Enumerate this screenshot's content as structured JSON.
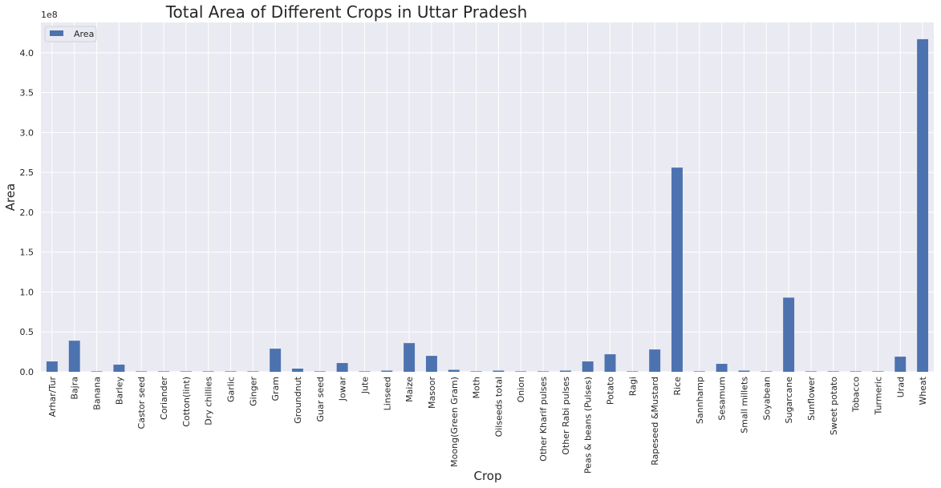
{
  "chart_data": {
    "type": "bar",
    "title": "Total Area of Different Crops in Uttar Pradesh",
    "xlabel": "Crop",
    "ylabel": "Area",
    "y_offset_label": "1e8",
    "ylim": [
      0,
      4.38
    ],
    "y_ticks": [
      "0.0",
      "0.5",
      "1.0",
      "1.5",
      "2.0",
      "2.5",
      "3.0",
      "3.5",
      "4.0"
    ],
    "grid": true,
    "legend_position": "top-left",
    "series": [
      {
        "name": "Area",
        "color": "#4c72b0",
        "values": [
          0.13,
          0.39,
          0.005,
          0.09,
          0.002,
          0.002,
          0.002,
          0.003,
          0.002,
          0.002,
          0.29,
          0.04,
          0.002,
          0.11,
          0.002,
          0.015,
          0.36,
          0.2,
          0.025,
          0.002,
          0.015,
          0.004,
          0.004,
          0.015,
          0.13,
          0.22,
          0.002,
          0.28,
          2.56,
          0.002,
          0.1,
          0.015,
          0.005,
          0.93,
          0.002,
          0.002,
          0.005,
          0.002,
          0.19,
          4.17
        ]
      }
    ],
    "categories": [
      "Arhar/Tur",
      "Bajra",
      "Banana",
      "Barley",
      "Castor seed",
      "Coriander",
      "Cotton(lint)",
      "Dry chillies",
      "Garlic",
      "Ginger",
      "Gram",
      "Groundnut",
      "Guar seed",
      "Jowar",
      "Jute",
      "Linseed",
      "Maize",
      "Masoor",
      "Moong(Green Gram)",
      "Moth",
      "Oilseeds total",
      "Onion",
      "Other Kharif pulses",
      "Other Rabi pulses",
      "Peas & beans (Pulses)",
      "Potato",
      "Ragi",
      "Rapeseed &Mustard",
      "Rice",
      "Sannhamp",
      "Sesamum",
      "Small millets",
      "Soyabean",
      "Sugarcane",
      "Sunflower",
      "Sweet potato",
      "Tobacco",
      "Turmeric",
      "Urad",
      "Wheat"
    ]
  }
}
